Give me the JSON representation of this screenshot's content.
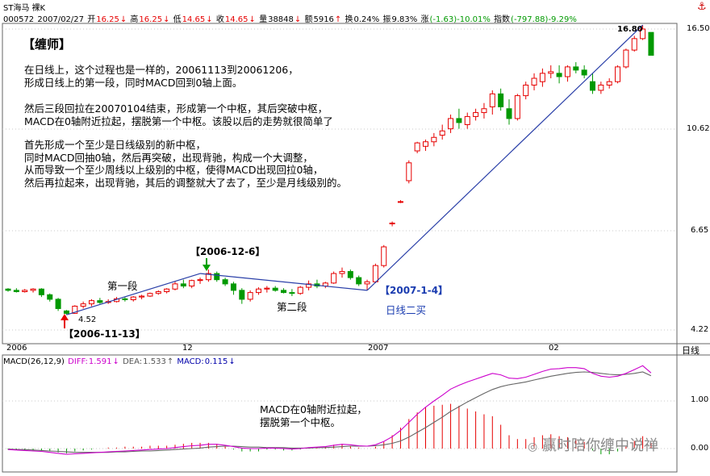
{
  "header": {
    "title_code_name": "ST海马",
    "title_mode": "裸K",
    "code": "000572",
    "date": "2007/02/27",
    "open_label": "开",
    "open": "16.25",
    "high_label": "高",
    "high": "16.25",
    "low_label": "低",
    "low": "14.65",
    "close_label": "收",
    "close": "14.65",
    "volume_label": "量",
    "volume": "38848",
    "amount_label": "额",
    "amount": "5916",
    "turnover_label": "换",
    "turnover": "0.24%",
    "amplitude_label": "振",
    "amplitude": "9.83%",
    "change_label": "涨",
    "change": "(-1.63)-10.01%",
    "index_label": "指数",
    "index": "(-797.88)-9.29%",
    "colors": {
      "up": "#e60000",
      "down": "#009900",
      "label": "#0000aa"
    }
  },
  "annotation": {
    "teacher": "【缠师】",
    "para1": "在日线上，这个过程也是一样的，20061113到20061206，\n形成日线上的第一段，同时MACD回到0轴上面。",
    "para2": "然后三段回拉在20070104结束，形成第一个中枢，其后突破中枢，\nMACD在0轴附近拉起，摆脱第一个中枢。该股以后的走势就很简单了",
    "para3": "首先形成一个至少是日线级别的新中枢，\n同时MACD回抽0轴，然后再突破，出现背驰，构成一个大调整，\n从而导致一个至少周线以上级别的中枢，使得MACD出现回拉0轴，\n然后再拉起来，出现背驰，其后的调整就大了去了，至少是月线级别的。"
  },
  "chart_labels": {
    "first_segment": "第一段",
    "second_segment": "第二段",
    "date_1113": "【2006-11-13】",
    "date_1206": "【2006-12-6】",
    "date_0104": "【2007-1-4】",
    "daily_buy2": "日线二买",
    "low_value": "4.52",
    "high_value": "16.80",
    "macd_note": "MACD在0轴附近拉起，\n摆脱第一个中枢。",
    "period": "日线",
    "watermark": "赢时陪你缠中说禅"
  },
  "axis": {
    "price_ticks": [
      "16.50",
      "10.62",
      "6.65",
      "4.22"
    ],
    "date_ticks": [
      "2006",
      "12",
      "2007",
      "02"
    ],
    "macd_ticks": [
      "1.00",
      "0.00"
    ]
  },
  "macd_header": {
    "name": "MACD(26,12,9)",
    "diff_label": "DIFF:",
    "diff": "1.591",
    "dea_label": "DEA:",
    "dea": "1.533",
    "macd_label": "MACD:",
    "macd": "0.115"
  },
  "chart_data": {
    "type": "candlestick",
    "price_scale": "log",
    "ylim": [
      4.1,
      17.5
    ],
    "candles": [
      [
        5.08,
        5.1,
        5.02,
        5.05
      ],
      [
        5.05,
        5.1,
        5.0,
        5.02
      ],
      [
        5.02,
        5.08,
        5.0,
        5.05
      ],
      [
        5.05,
        5.1,
        5.0,
        5.08
      ],
      [
        5.08,
        5.1,
        4.9,
        4.95
      ],
      [
        4.95,
        4.98,
        4.8,
        4.85
      ],
      [
        4.85,
        4.88,
        4.6,
        4.65
      ],
      [
        4.6,
        4.62,
        4.52,
        4.55
      ],
      [
        4.55,
        4.72,
        4.54,
        4.7
      ],
      [
        4.7,
        4.8,
        4.65,
        4.75
      ],
      [
        4.75,
        4.85,
        4.7,
        4.82
      ],
      [
        4.82,
        4.88,
        4.75,
        4.78
      ],
      [
        4.78,
        4.85,
        4.75,
        4.8
      ],
      [
        4.8,
        4.9,
        4.78,
        4.86
      ],
      [
        4.86,
        4.9,
        4.8,
        4.84
      ],
      [
        4.84,
        4.92,
        4.8,
        4.9
      ],
      [
        4.9,
        4.95,
        4.85,
        4.92
      ],
      [
        4.92,
        5.0,
        4.9,
        4.98
      ],
      [
        4.98,
        5.05,
        4.95,
        5.02
      ],
      [
        5.02,
        5.1,
        4.98,
        5.08
      ],
      [
        5.08,
        5.25,
        5.05,
        5.2
      ],
      [
        5.2,
        5.3,
        5.1,
        5.15
      ],
      [
        5.15,
        5.3,
        5.1,
        5.28
      ],
      [
        5.28,
        5.35,
        5.2,
        5.3
      ],
      [
        5.3,
        5.55,
        5.25,
        5.45
      ],
      [
        5.45,
        5.5,
        5.25,
        5.3
      ],
      [
        5.3,
        5.35,
        5.15,
        5.2
      ],
      [
        5.2,
        5.25,
        4.95,
        5.05
      ],
      [
        5.05,
        5.1,
        4.75,
        4.85
      ],
      [
        4.85,
        5.05,
        4.8,
        5.0
      ],
      [
        5.0,
        5.12,
        4.95,
        5.08
      ],
      [
        5.08,
        5.15,
        5.0,
        5.1
      ],
      [
        5.1,
        5.15,
        5.02,
        5.05
      ],
      [
        5.05,
        5.1,
        4.98,
        5.0
      ],
      [
        5.0,
        5.08,
        4.92,
        4.98
      ],
      [
        4.98,
        5.15,
        4.95,
        5.12
      ],
      [
        5.12,
        5.28,
        5.05,
        5.2
      ],
      [
        5.2,
        5.3,
        5.1,
        5.15
      ],
      [
        5.15,
        5.25,
        5.1,
        5.22
      ],
      [
        5.22,
        5.5,
        5.2,
        5.45
      ],
      [
        5.45,
        5.6,
        5.35,
        5.5
      ],
      [
        5.5,
        5.55,
        5.3,
        5.35
      ],
      [
        5.35,
        5.4,
        5.15,
        5.2
      ],
      [
        5.2,
        5.3,
        5.05,
        5.25
      ],
      [
        5.25,
        5.7,
        5.22,
        5.65
      ],
      [
        5.65,
        6.2,
        5.6,
        6.15
      ],
      [
        6.85,
        6.9,
        6.75,
        6.85
      ],
      [
        7.55,
        7.6,
        7.5,
        7.55
      ],
      [
        8.3,
        9.1,
        8.2,
        9.0
      ],
      [
        9.5,
        9.9,
        9.4,
        9.85
      ],
      [
        9.7,
        10.0,
        9.5,
        9.9
      ],
      [
        9.9,
        10.3,
        9.7,
        10.1
      ],
      [
        10.2,
        10.7,
        10.0,
        10.4
      ],
      [
        10.5,
        11.2,
        10.3,
        11.0
      ],
      [
        11.0,
        11.5,
        10.5,
        10.8
      ],
      [
        10.7,
        11.3,
        10.5,
        11.1
      ],
      [
        11.1,
        11.5,
        10.9,
        11.3
      ],
      [
        11.3,
        11.8,
        11.0,
        11.5
      ],
      [
        11.6,
        12.5,
        11.2,
        12.3
      ],
      [
        12.3,
        12.6,
        11.4,
        11.6
      ],
      [
        11.5,
        12.0,
        10.7,
        11.0
      ],
      [
        11.0,
        12.3,
        10.9,
        12.2
      ],
      [
        12.2,
        13.0,
        12.0,
        12.8
      ],
      [
        12.8,
        13.5,
        12.5,
        13.2
      ],
      [
        13.0,
        13.8,
        12.7,
        13.5
      ],
      [
        13.5,
        14.0,
        13.2,
        13.6
      ],
      [
        13.5,
        14.0,
        12.9,
        13.3
      ],
      [
        13.3,
        14.0,
        13.0,
        13.9
      ],
      [
        13.9,
        14.2,
        13.5,
        13.7
      ],
      [
        13.7,
        14.0,
        13.2,
        13.4
      ],
      [
        13.0,
        13.5,
        12.3,
        12.5
      ],
      [
        12.5,
        13.0,
        12.3,
        12.8
      ],
      [
        12.8,
        13.2,
        12.6,
        13.0
      ],
      [
        13.0,
        14.0,
        12.9,
        13.9
      ],
      [
        13.9,
        15.1,
        13.8,
        15.0
      ],
      [
        15.0,
        16.0,
        14.9,
        15.8
      ],
      [
        15.8,
        16.8,
        15.7,
        16.5
      ],
      [
        16.25,
        16.25,
        14.65,
        14.65
      ]
    ],
    "zigzag_segments": [
      {
        "from_index": 7,
        "from_price": 4.52,
        "to_index": 23,
        "to_price": 5.45
      },
      {
        "from_index": 23,
        "to_index": 43,
        "from_price": 5.45,
        "to_price": 5.05
      },
      {
        "from_index": 43,
        "to_index": 76,
        "from_price": 5.05,
        "to_price": 16.8
      }
    ],
    "macd": {
      "diff": [
        -0.02,
        -0.03,
        -0.04,
        -0.05,
        -0.06,
        -0.08,
        -0.1,
        -0.12,
        -0.11,
        -0.1,
        -0.09,
        -0.08,
        -0.07,
        -0.06,
        -0.05,
        -0.04,
        -0.03,
        -0.02,
        -0.01,
        0.0,
        0.02,
        0.04,
        0.06,
        0.07,
        0.09,
        0.09,
        0.07,
        0.04,
        0.01,
        0.0,
        0.0,
        0.01,
        0.01,
        0.0,
        -0.01,
        0.0,
        0.02,
        0.03,
        0.04,
        0.07,
        0.09,
        0.08,
        0.06,
        0.05,
        0.08,
        0.15,
        0.25,
        0.38,
        0.55,
        0.72,
        0.87,
        1.0,
        1.12,
        1.25,
        1.33,
        1.4,
        1.46,
        1.52,
        1.58,
        1.55,
        1.48,
        1.47,
        1.5,
        1.56,
        1.62,
        1.67,
        1.68,
        1.7,
        1.7,
        1.68,
        1.58,
        1.52,
        1.5,
        1.52,
        1.58,
        1.66,
        1.74,
        1.59
      ],
      "dea": [
        -0.01,
        -0.02,
        -0.02,
        -0.03,
        -0.04,
        -0.05,
        -0.06,
        -0.07,
        -0.08,
        -0.08,
        -0.08,
        -0.08,
        -0.08,
        -0.07,
        -0.07,
        -0.06,
        -0.05,
        -0.05,
        -0.04,
        -0.03,
        -0.02,
        -0.01,
        0.0,
        0.01,
        0.03,
        0.04,
        0.05,
        0.05,
        0.04,
        0.03,
        0.03,
        0.02,
        0.02,
        0.02,
        0.01,
        0.01,
        0.01,
        0.02,
        0.02,
        0.03,
        0.04,
        0.05,
        0.05,
        0.05,
        0.06,
        0.08,
        0.11,
        0.16,
        0.24,
        0.34,
        0.44,
        0.55,
        0.66,
        0.78,
        0.88,
        0.98,
        1.07,
        1.16,
        1.24,
        1.3,
        1.34,
        1.37,
        1.4,
        1.44,
        1.48,
        1.52,
        1.55,
        1.58,
        1.6,
        1.61,
        1.6,
        1.58,
        1.56,
        1.55,
        1.56,
        1.58,
        1.61,
        1.53
      ]
    }
  }
}
